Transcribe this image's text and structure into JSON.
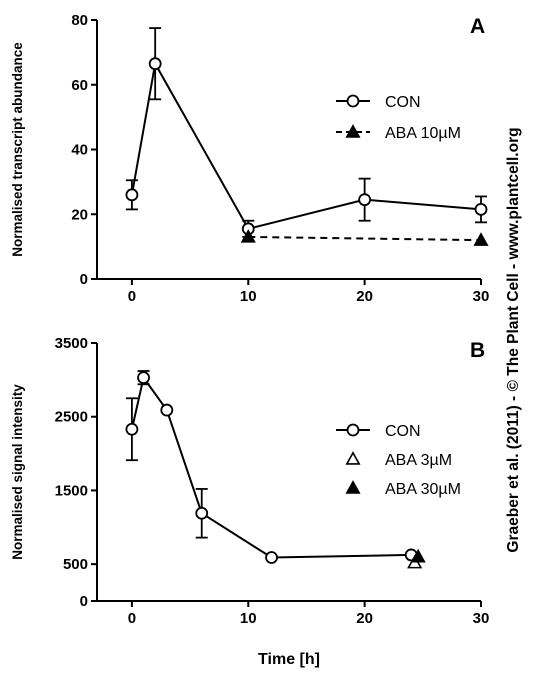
{
  "credit": "Graeber et al. (2011) - © The Plant Cell - www.plantcell.org",
  "chart_data": [
    {
      "panel_label": "A",
      "type": "line",
      "title": "",
      "xlabel": "",
      "ylabel": "Normalised transcript abundance",
      "xlim": [
        -3,
        30
      ],
      "ylim": [
        0,
        80
      ],
      "xticks": [
        0,
        10,
        20,
        30
      ],
      "yticks": [
        0,
        20,
        40,
        60,
        80
      ],
      "legend_position": "right",
      "series": [
        {
          "name": "CON",
          "marker": "open-circle",
          "line": "solid",
          "color": "#000000",
          "x": [
            0,
            2,
            10,
            20,
            30
          ],
          "y": [
            26,
            66.5,
            15.5,
            24.5,
            21.5
          ],
          "err": [
            4.5,
            11,
            2.5,
            6.5,
            4
          ]
        },
        {
          "name": "ABA 10µM",
          "marker": "filled-triangle",
          "line": "dashed",
          "color": "#000000",
          "x": [
            10,
            30
          ],
          "y": [
            13,
            12
          ],
          "err": [
            0,
            0
          ]
        }
      ]
    },
    {
      "panel_label": "B",
      "type": "line",
      "title": "",
      "xlabel": "Time [h]",
      "ylabel": "Normalised signal intensity",
      "xlim": [
        -3,
        30
      ],
      "ylim": [
        0,
        3500
      ],
      "xticks": [
        0,
        10,
        20,
        30
      ],
      "yticks": [
        0,
        500,
        1500,
        2500,
        3500
      ],
      "legend_position": "right",
      "series": [
        {
          "name": "CON",
          "marker": "open-circle",
          "line": "solid",
          "color": "#000000",
          "x": [
            0,
            1,
            3,
            6,
            12,
            24
          ],
          "y": [
            2330,
            3030,
            2590,
            1190,
            590,
            625
          ],
          "err": [
            420,
            90,
            0,
            330,
            0,
            0
          ]
        },
        {
          "name": "ABA 3µM",
          "marker": "open-triangle",
          "line": "none",
          "color": "#000000",
          "x": [
            24.3
          ],
          "y": [
            520
          ],
          "err": [
            0
          ]
        },
        {
          "name": "ABA 30µM",
          "marker": "filled-triangle",
          "line": "none",
          "color": "#000000",
          "x": [
            24.6
          ],
          "y": [
            600
          ],
          "err": [
            0
          ]
        }
      ]
    }
  ]
}
